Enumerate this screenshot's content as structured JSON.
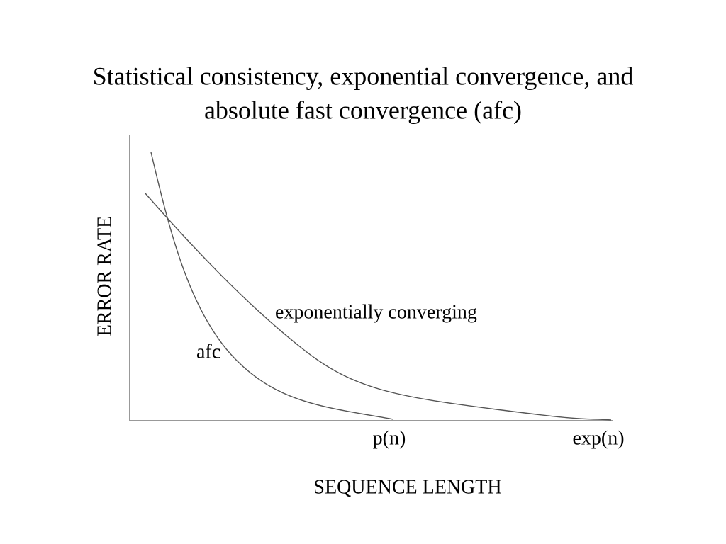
{
  "title": {
    "lines": [
      "Statistical consistency, exponential convergence, and",
      "absolute fast convergence (afc)"
    ]
  },
  "diagram": {
    "y_axis_label": "ERROR RATE",
    "x_axis_label": "SEQUENCE LENGTH",
    "x_markers": [
      "p(n)",
      "exp(n)"
    ],
    "curve_labels": [
      "exponentially converging",
      "afc"
    ]
  }
}
